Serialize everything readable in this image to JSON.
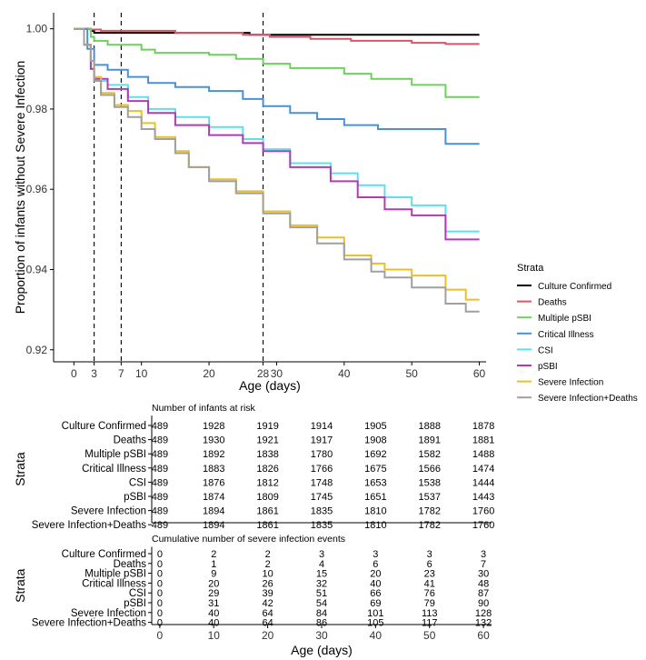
{
  "chart_data": [
    {
      "type": "line",
      "subtype": "step",
      "title": "",
      "xlabel": "Age (days)",
      "ylabel": "Proportion of infants without Severe Infection",
      "xlim": [
        -3,
        61
      ],
      "ylim": [
        0.917,
        1.004
      ],
      "x_ticks": [
        0,
        3,
        7,
        10,
        20,
        28,
        30,
        40,
        50,
        60
      ],
      "x_tick_labels": [
        "0",
        "3",
        "7",
        "10",
        "20",
        "28",
        "30",
        "40",
        "50",
        "60"
      ],
      "y_ticks": [
        0.92,
        0.94,
        0.96,
        0.98,
        1.0
      ],
      "y_tick_labels": [
        "0.92",
        "0.94",
        "0.96",
        "0.98",
        "1.00"
      ],
      "reference_lines_x": [
        3,
        7,
        28
      ],
      "grid": false,
      "legend": {
        "title": "Strata",
        "position": "right"
      },
      "series": [
        {
          "name": "Culture Confirmed",
          "color": "#000000",
          "x": [
            0,
            2.5,
            3,
            15,
            26,
            28,
            60
          ],
          "y": [
            1.0,
            0.9995,
            0.999,
            0.999,
            0.9985,
            0.9985,
            0.9985
          ]
        },
        {
          "name": "Deaths",
          "color": "#d9556b",
          "x": [
            0,
            1.5,
            2.5,
            4,
            15,
            25,
            29,
            35,
            41,
            50,
            55,
            60
          ],
          "y": [
            1.0,
            1.0,
            0.9998,
            0.9995,
            0.999,
            0.9985,
            0.998,
            0.9975,
            0.997,
            0.9965,
            0.9962,
            0.9962
          ]
        },
        {
          "name": "Multiple pSBI",
          "color": "#6fcf5f",
          "x": [
            0,
            2.5,
            3,
            5,
            10,
            12,
            20,
            24,
            28,
            32,
            40,
            44,
            50,
            55,
            60
          ],
          "y": [
            1.0,
            0.998,
            0.997,
            0.996,
            0.9948,
            0.994,
            0.9935,
            0.9925,
            0.9913,
            0.9902,
            0.9888,
            0.9875,
            0.986,
            0.983,
            0.983
          ]
        },
        {
          "name": "Critical Illness",
          "color": "#4a90d9",
          "x": [
            0,
            2,
            3,
            5,
            8,
            11,
            15,
            20,
            25,
            28,
            32,
            36,
            40,
            45,
            55,
            60
          ],
          "y": [
            1.0,
            0.995,
            0.991,
            0.9898,
            0.988,
            0.9865,
            0.9855,
            0.9845,
            0.9825,
            0.9807,
            0.979,
            0.9775,
            0.976,
            0.975,
            0.9713,
            0.9713
          ]
        },
        {
          "name": "CSI",
          "color": "#5ee0ea",
          "x": [
            0,
            1.5,
            2.5,
            3,
            5,
            8,
            11,
            15,
            20,
            25,
            28,
            32,
            38,
            42,
            46,
            50,
            55,
            60
          ],
          "y": [
            1.0,
            0.996,
            0.99,
            0.987,
            0.986,
            0.983,
            0.98,
            0.978,
            0.9755,
            0.9725,
            0.97,
            0.9665,
            0.964,
            0.961,
            0.958,
            0.956,
            0.9495,
            0.9495
          ]
        },
        {
          "name": "pSBI",
          "color": "#b03bb5",
          "x": [
            0,
            1.5,
            2.5,
            3,
            5,
            8,
            11,
            15,
            20,
            25,
            28,
            32,
            38,
            42,
            46,
            50,
            55,
            60
          ],
          "y": [
            1.0,
            0.996,
            0.99,
            0.9875,
            0.985,
            0.982,
            0.979,
            0.976,
            0.9735,
            0.9715,
            0.9695,
            0.9655,
            0.962,
            0.958,
            0.955,
            0.9535,
            0.9475,
            0.9475
          ]
        },
        {
          "name": "Severe Infection",
          "color": "#e8c02a",
          "x": [
            0,
            1.5,
            2.5,
            3,
            4,
            6,
            8,
            10,
            12,
            15,
            17,
            20,
            24,
            28,
            32,
            36,
            40,
            44,
            46,
            50,
            55,
            58,
            60
          ],
          "y": [
            1.0,
            0.996,
            0.992,
            0.988,
            0.984,
            0.981,
            0.9795,
            0.9765,
            0.973,
            0.9695,
            0.9655,
            0.9625,
            0.9595,
            0.9545,
            0.951,
            0.948,
            0.9435,
            0.9415,
            0.94,
            0.9385,
            0.935,
            0.9325,
            0.9325
          ]
        },
        {
          "name": "Severe Infection+Deaths",
          "color": "#a0a0a0",
          "x": [
            0,
            1.5,
            2.5,
            3,
            4,
            6,
            8,
            10,
            12,
            15,
            17,
            20,
            24,
            28,
            32,
            36,
            40,
            44,
            46,
            50,
            55,
            58,
            60
          ],
          "y": [
            1.0,
            0.996,
            0.992,
            0.987,
            0.9835,
            0.9805,
            0.978,
            0.975,
            0.9725,
            0.969,
            0.9655,
            0.962,
            0.959,
            0.954,
            0.9505,
            0.9465,
            0.9425,
            0.9395,
            0.938,
            0.9355,
            0.9315,
            0.9295,
            0.9295
          ]
        }
      ]
    },
    {
      "type": "table",
      "title": "Number of infants at risk",
      "ylabel": "Strata",
      "rows": [
        "Culture Confirmed",
        "Deaths",
        "Multiple pSBI",
        "Critical Illness",
        "CSI",
        "pSBI",
        "Severe Infection",
        "Severe Infection+Deaths"
      ],
      "columns_x": [
        0,
        10,
        20,
        30,
        40,
        50,
        60
      ],
      "values": [
        [
          "489",
          "1928",
          "1919",
          "1914",
          "1905",
          "1888",
          "1878"
        ],
        [
          "489",
          "1930",
          "1921",
          "1917",
          "1908",
          "1891",
          "1881"
        ],
        [
          "489",
          "1892",
          "1838",
          "1780",
          "1692",
          "1582",
          "1488"
        ],
        [
          "489",
          "1883",
          "1826",
          "1766",
          "1675",
          "1566",
          "1474"
        ],
        [
          "489",
          "1876",
          "1812",
          "1748",
          "1653",
          "1538",
          "1444"
        ],
        [
          "489",
          "1874",
          "1809",
          "1745",
          "1651",
          "1537",
          "1443"
        ],
        [
          "489",
          "1894",
          "1861",
          "1835",
          "1810",
          "1782",
          "1760"
        ],
        [
          "489",
          "1894",
          "1861",
          "1835",
          "1810",
          "1782",
          "1760"
        ]
      ]
    },
    {
      "type": "table",
      "title": "Cumulative number of severe infection events",
      "xlabel": "Age (days)",
      "ylabel": "Strata",
      "rows": [
        "Culture Confirmed",
        "Deaths",
        "Multiple pSBI",
        "Critical Illness",
        "CSI",
        "pSBI",
        "Severe Infection",
        "Severe Infection+Deaths"
      ],
      "columns_x": [
        0,
        10,
        20,
        30,
        40,
        50,
        60
      ],
      "x_tick_labels": [
        "0",
        "10",
        "20",
        "30",
        "40",
        "50",
        "60"
      ],
      "values": [
        [
          "0",
          "2",
          "2",
          "3",
          "3",
          "3",
          "3"
        ],
        [
          "0",
          "1",
          "2",
          "4",
          "6",
          "6",
          "7"
        ],
        [
          "0",
          "9",
          "10",
          "15",
          "20",
          "23",
          "30"
        ],
        [
          "0",
          "20",
          "26",
          "32",
          "40",
          "41",
          "48"
        ],
        [
          "0",
          "29",
          "39",
          "51",
          "66",
          "76",
          "87"
        ],
        [
          "0",
          "31",
          "42",
          "54",
          "69",
          "79",
          "90"
        ],
        [
          "0",
          "40",
          "64",
          "84",
          "101",
          "113",
          "128"
        ],
        [
          "0",
          "40",
          "64",
          "86",
          "105",
          "117",
          "132"
        ]
      ]
    }
  ]
}
